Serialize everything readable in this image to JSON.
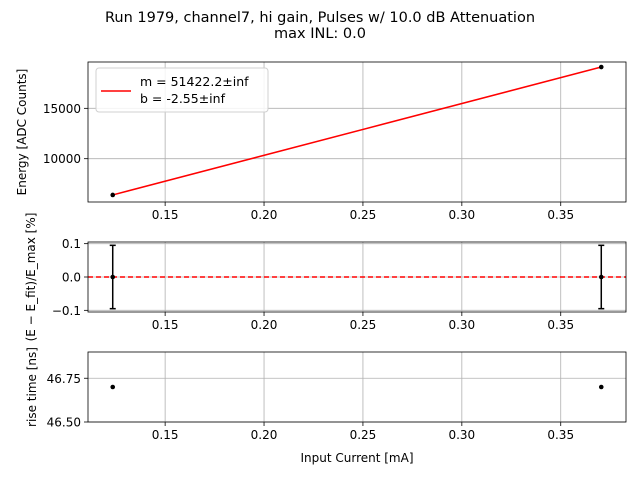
{
  "title_line1": "Run 1979, channel7, hi gain, Pulses w/ 10.0 dB Attenuation",
  "title_line2": "max INL: 0.0",
  "chart_data": [
    {
      "type": "line",
      "name": "energy-fit",
      "ylabel": "Energy [ADC Counts]",
      "xlim": [
        0.111,
        0.383
      ],
      "ylim": [
        5700,
        19600
      ],
      "xticks": [
        0.15,
        0.2,
        0.25,
        0.3,
        0.35
      ],
      "xtick_labels": [
        "0.15",
        "0.20",
        "0.25",
        "0.30",
        "0.35"
      ],
      "yticks": [
        10000,
        15000
      ],
      "ytick_labels": [
        "10000",
        "15000"
      ],
      "grid": true,
      "legend_position": "top-left",
      "points": {
        "x": [
          0.1235,
          0.3705
        ],
        "y": [
          6400,
          19100
        ]
      },
      "fit_line": {
        "x": [
          0.1235,
          0.3705
        ],
        "y": [
          6400,
          19100
        ],
        "color": "#ff0000"
      },
      "legend": [
        "m = 51422.2±inf",
        "b = -2.55±inf"
      ]
    },
    {
      "type": "scatter",
      "name": "residuals",
      "ylabel": "(E − E_fit)/E_max [%]",
      "xlim": [
        0.111,
        0.383
      ],
      "ylim": [
        -0.105,
        0.105
      ],
      "xticks": [
        0.15,
        0.2,
        0.25,
        0.3,
        0.35
      ],
      "xtick_labels": [
        "0.15",
        "0.20",
        "0.25",
        "0.30",
        "0.35"
      ],
      "yticks": [
        -0.1,
        0.0,
        0.1
      ],
      "ytick_labels": [
        "−0.1",
        "0.0",
        "0.1"
      ],
      "grid": true,
      "points": {
        "x": [
          0.1235,
          0.3705
        ],
        "y": [
          0.0,
          0.0
        ],
        "yerr": [
          0.095,
          0.095
        ]
      },
      "reference_line": {
        "y": 0.0,
        "color": "#ff0000",
        "style": "dashed"
      }
    },
    {
      "type": "scatter",
      "name": "rise-time",
      "ylabel": "rise time [ns]",
      "xlabel": "Input Current [mA]",
      "xlim": [
        0.111,
        0.383
      ],
      "ylim": [
        46.5,
        46.9
      ],
      "xticks": [
        0.15,
        0.2,
        0.25,
        0.3,
        0.35
      ],
      "xtick_labels": [
        "0.15",
        "0.20",
        "0.25",
        "0.30",
        "0.35"
      ],
      "yticks": [
        46.5,
        46.75
      ],
      "ytick_labels": [
        "46.50",
        "46.75"
      ],
      "grid": true,
      "points": {
        "x": [
          0.1235,
          0.3705
        ],
        "y": [
          46.7,
          46.7
        ]
      }
    }
  ]
}
